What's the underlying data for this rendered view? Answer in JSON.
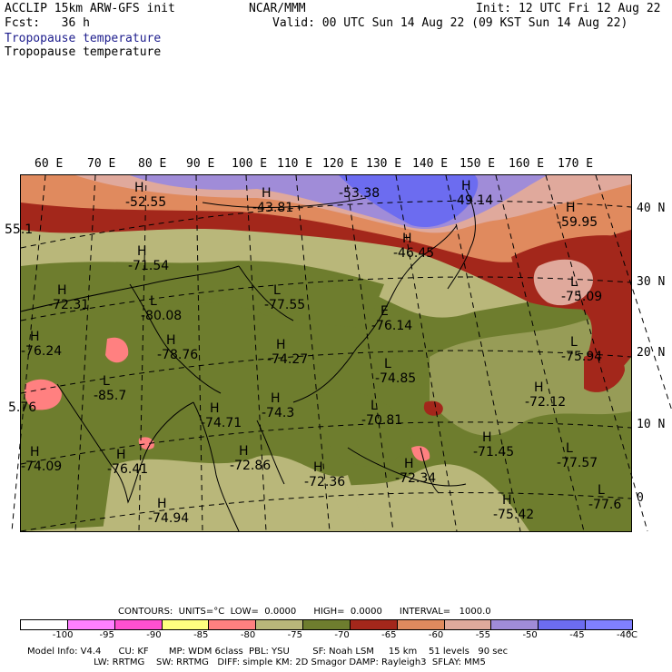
{
  "header": {
    "left1": "ACCLIP 15km ARW-GFS init",
    "center1": "NCAR/MMM",
    "right1": "Init: 12 UTC Fri 12 Aug 22",
    "left2": "Fcst:   36 h",
    "right2": "Valid: 00 UTC Sun 14 Aug 22 (09 KST Sun 14 Aug 22)",
    "field_title": "Tropopause temperature",
    "field_subtitle": "Tropopause temperature"
  },
  "map": {
    "lon_labels": [
      "60 E",
      "70 E",
      "80 E",
      "90 E",
      "100 E",
      "110 E",
      "120 E",
      "130 E",
      "140 E",
      "150 E",
      "160 E",
      "170 E"
    ],
    "lat_labels": [
      "40 N",
      "30 N",
      "20 N",
      "10 N",
      "0"
    ],
    "highs_lows": [
      {
        "mark": "H",
        "value": "-52.55"
      },
      {
        "mark": "H",
        "value": "-43.81"
      },
      {
        "mark": "",
        "value": "-53.38"
      },
      {
        "mark": "H",
        "value": "-49.14"
      },
      {
        "mark": "H",
        "value": "-59.95"
      },
      {
        "mark": "",
        "value": "55.1"
      },
      {
        "mark": "H",
        "value": "-71.54"
      },
      {
        "mark": "H",
        "value": "-46.45"
      },
      {
        "mark": "H",
        "value": "-72.31"
      },
      {
        "mark": "L",
        "value": "-80.08"
      },
      {
        "mark": "L",
        "value": "-77.55"
      },
      {
        "mark": "L",
        "value": "-75.09"
      },
      {
        "mark": "E",
        "value": "-76.14"
      },
      {
        "mark": "H",
        "value": "-76.24"
      },
      {
        "mark": "H",
        "value": "-78.76"
      },
      {
        "mark": "H",
        "value": "-74.27"
      },
      {
        "mark": "L",
        "value": "-75.94"
      },
      {
        "mark": "L",
        "value": "-85.7"
      },
      {
        "mark": "L",
        "value": "-74.85"
      },
      {
        "mark": "H",
        "value": "-72.12"
      },
      {
        "mark": "",
        "value": "5.76"
      },
      {
        "mark": "H",
        "value": "-74.3"
      },
      {
        "mark": "L",
        "value": "-70.81"
      },
      {
        "mark": "H",
        "value": "-74.71"
      },
      {
        "mark": "H",
        "value": "-71.45"
      },
      {
        "mark": "H",
        "value": "-74.09"
      },
      {
        "mark": "H",
        "value": "-76.41"
      },
      {
        "mark": "H",
        "value": "-72.86"
      },
      {
        "mark": "H",
        "value": "-72.36"
      },
      {
        "mark": "H",
        "value": "-72.34"
      },
      {
        "mark": "L",
        "value": "-77.57"
      },
      {
        "mark": "H",
        "value": "-74.94"
      },
      {
        "mark": "H",
        "value": "-75.42"
      },
      {
        "mark": "L",
        "value": "-77.6"
      }
    ]
  },
  "contour_info": {
    "contours": "CONTOURS:  UNITS=°C  LOW=  0.0000      HIGH=  0.0000      INTERVAL=   1000.0"
  },
  "colorbar": {
    "ticks": [
      "-100",
      "-95",
      "-90",
      "-85",
      "-80",
      "-75",
      "-70",
      "-65",
      "-60",
      "-55",
      "-50",
      "-45",
      "-40"
    ],
    "unit": "°C",
    "colors": [
      "#ffffff",
      "#ff80ff",
      "#ff50d0",
      "#ffff80",
      "#ff8080",
      "#b9b77a",
      "#6e7d2e",
      "#a3271b",
      "#e08a5e",
      "#e0a99c",
      "#a08cd8",
      "#6c6cf0",
      "#8080ff"
    ]
  },
  "footer": {
    "line1": "Model Info: V4.4      CU: KF       MP: WDM 6class  PBL: YSU        SF: Noah LSM     15 km    51 levels   90 sec",
    "line2": "                       LW: RRTMG    SW: RRTMG   DIFF: simple KM: 2D Smagor DAMP: Rayleigh3  SFLAY: MM5"
  }
}
